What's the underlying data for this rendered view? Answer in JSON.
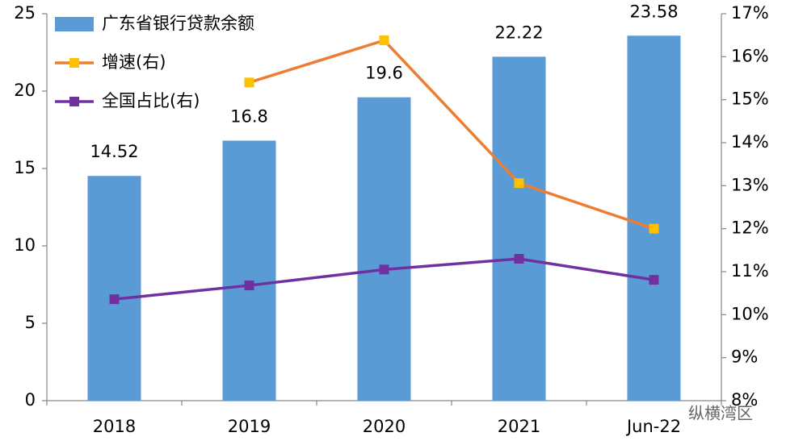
{
  "chart_data": {
    "type": "bar",
    "categories": [
      "2018",
      "2019",
      "2020",
      "2021",
      "Jun-22"
    ],
    "series": [
      {
        "name": "广东省银行贷款余额",
        "type": "bar",
        "color": "#5b9bd5",
        "values": [
          14.52,
          16.8,
          19.6,
          22.22,
          23.58
        ]
      },
      {
        "name": "增速(右)",
        "type": "line",
        "axis": "y2",
        "color": "#ed7d31",
        "marker_color": "#ffc000",
        "values": [
          null,
          15.4,
          16.38,
          13.06,
          12.0
        ]
      },
      {
        "name": "全国占比(右)",
        "type": "line",
        "axis": "y2",
        "color": "#7030a0",
        "marker_color": "#7030a0",
        "values": [
          10.36,
          10.68,
          11.05,
          11.3,
          10.81
        ]
      }
    ],
    "ylim": [
      0,
      25
    ],
    "yticks": [
      0,
      5,
      10,
      15,
      20,
      25
    ],
    "y2lim": [
      8,
      17
    ],
    "y2ticks": [
      {
        "value": 8,
        "label": "8%"
      },
      {
        "value": 9,
        "label": "9%"
      },
      {
        "value": 10,
        "label": "10%"
      },
      {
        "value": 11,
        "label": "11%"
      },
      {
        "value": 12,
        "label": "12%"
      },
      {
        "value": 13,
        "label": "13%"
      },
      {
        "value": 14,
        "label": "14%"
      },
      {
        "value": 15,
        "label": "15%"
      },
      {
        "value": 16,
        "label": "16%"
      },
      {
        "value": 17,
        "label": "17%"
      }
    ],
    "legend": "top-left",
    "watermark": "纵横湾区"
  }
}
